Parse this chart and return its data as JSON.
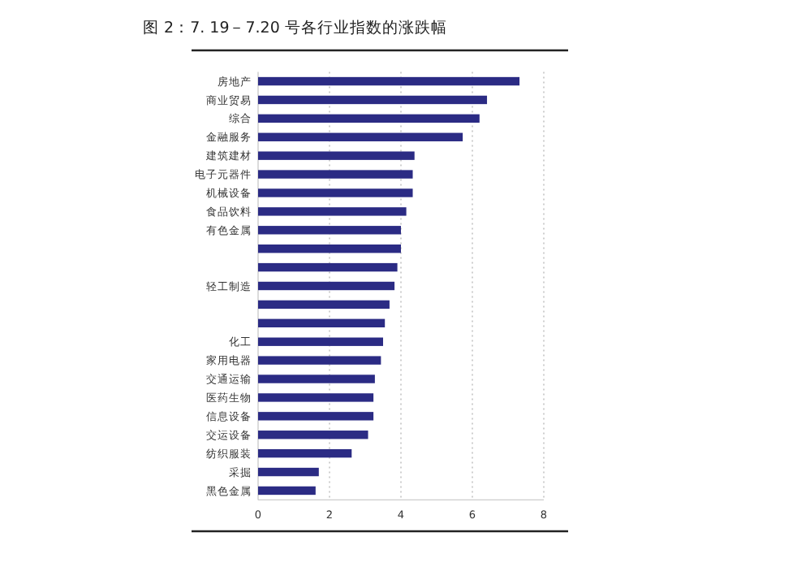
{
  "chart_data": {
    "type": "bar",
    "orientation": "horizontal",
    "title": "图 2：7. 19－7.20 号各行业指数的涨跌幅",
    "categories": [
      "房地产",
      "商业贸易",
      "综合",
      "金融服务",
      "建筑建材",
      "电子元器件",
      "机械设备",
      "食品饮料",
      "有色金属",
      null,
      null,
      "轻工制造",
      null,
      null,
      "化工",
      "家用电器",
      "交通运输",
      "医药生物",
      "信息设备",
      "交运设备",
      "纺织服装",
      "采掘",
      "黑色金属"
    ],
    "values": [
      7.32,
      6.41,
      6.2,
      5.73,
      4.38,
      4.33,
      4.33,
      4.15,
      4.0,
      4.0,
      3.9,
      3.82,
      3.68,
      3.55,
      3.5,
      3.44,
      3.27,
      3.23,
      3.23,
      3.08,
      2.62,
      1.7,
      1.61
    ],
    "color": "#2b2b84",
    "xlim": [
      0,
      8
    ],
    "xticks": [
      0,
      2,
      4,
      6,
      8
    ],
    "grid": "x"
  }
}
